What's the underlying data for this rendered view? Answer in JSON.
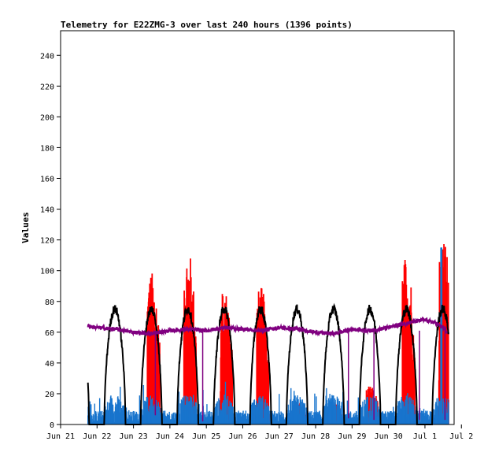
{
  "chart_data": {
    "type": "line",
    "title": "Telemetry for E22ZMG-3 over last 240 hours (1396 points)",
    "xlabel": "",
    "ylabel": "Values",
    "x_ticks": [
      "Jun 21",
      "Jun 22",
      "Jun 23",
      "Jun 24",
      "Jun 25",
      "Jun 26",
      "Jun 27",
      "Jun 28",
      "Jun 29",
      "Jun 30",
      "Jul 1",
      "Jul 2"
    ],
    "x_range_days": [
      0,
      10.8
    ],
    "ylim": [
      0,
      256
    ],
    "y_ticks": [
      0,
      20,
      40,
      60,
      80,
      100,
      120,
      140,
      160,
      180,
      200,
      220,
      240
    ],
    "grid": false,
    "legend": "none",
    "colors": {
      "red_series": "#ff0000",
      "blue_series": "#1874cd",
      "black_series": "#000000",
      "purple_series": "#800080"
    },
    "series": [
      {
        "color": "#ff0000",
        "style": "bars",
        "daily_profile": [
          {
            "day": 1,
            "peak": 0
          },
          {
            "day": 2,
            "peak": 100
          },
          {
            "day": 3,
            "peak": 115
          },
          {
            "day": 4,
            "peak": 90
          },
          {
            "day": 5,
            "peak": 90
          },
          {
            "day": 6,
            "peak": 15
          },
          {
            "day": 7,
            "peak": 15
          },
          {
            "day": 8,
            "peak": 25
          },
          {
            "day": 9,
            "peak": 110
          },
          {
            "day": 10,
            "peak": 124
          }
        ]
      },
      {
        "color": "#1874cd",
        "style": "bars",
        "typical_range": [
          0,
          15
        ],
        "max": 115
      },
      {
        "color": "#000000",
        "style": "line",
        "daily_peak": 75,
        "night_value": 0
      },
      {
        "color": "#800080",
        "style": "line",
        "points": [
          [
            0.75,
            64
          ],
          [
            1.0,
            63
          ],
          [
            1.5,
            62
          ],
          [
            2.0,
            60
          ],
          [
            2.5,
            59
          ],
          [
            3.0,
            61
          ],
          [
            3.5,
            62
          ],
          [
            4.0,
            61
          ],
          [
            4.5,
            63
          ],
          [
            5.0,
            62
          ],
          [
            5.5,
            61
          ],
          [
            6.0,
            63
          ],
          [
            6.5,
            62
          ],
          [
            7.0,
            60
          ],
          [
            7.5,
            59
          ],
          [
            8.0,
            62
          ],
          [
            8.5,
            61
          ],
          [
            9.0,
            63
          ],
          [
            9.5,
            66
          ],
          [
            10.0,
            68
          ],
          [
            10.3,
            66
          ],
          [
            10.55,
            62
          ],
          [
            10.6,
            60
          ]
        ]
      }
    ]
  }
}
